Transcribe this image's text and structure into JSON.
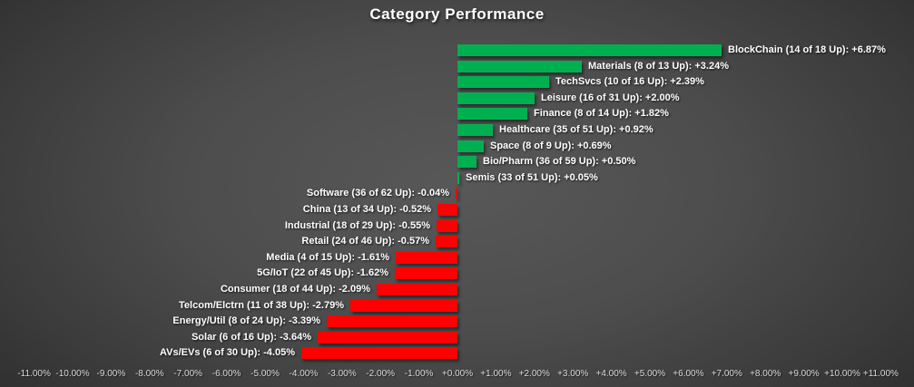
{
  "title": "Category Performance",
  "colors": {
    "positive_bar": "#00B050",
    "negative_bar": "#FF0000",
    "title_text": "#FFFFFF",
    "bar_label_text": "#FFFFFF",
    "axis_tick_text": "#D9D9D9",
    "background_center": "#585858",
    "background_edge": "#242424"
  },
  "chart_data": {
    "type": "bar",
    "orientation": "horizontal",
    "title": "Category Performance",
    "xlabel": "",
    "ylabel": "",
    "xlim": [
      -11,
      11
    ],
    "tick_step_pct": 1,
    "grid": false,
    "legend": "none",
    "value_unit": "%",
    "categories": [
      {
        "name": "BlockChain",
        "up": 14,
        "total": 18,
        "value": 6.87,
        "label": "BlockChain (14 of 18 Up): +6.87%"
      },
      {
        "name": "Materials",
        "up": 8,
        "total": 13,
        "value": 3.24,
        "label": "Materials (8 of 13 Up): +3.24%"
      },
      {
        "name": "TechSvcs",
        "up": 10,
        "total": 16,
        "value": 2.39,
        "label": "TechSvcs (10 of 16 Up): +2.39%"
      },
      {
        "name": "Leisure",
        "up": 16,
        "total": 31,
        "value": 2.0,
        "label": "Leisure (16 of 31 Up): +2.00%"
      },
      {
        "name": "Finance",
        "up": 8,
        "total": 14,
        "value": 1.82,
        "label": "Finance (8 of 14 Up): +1.82%"
      },
      {
        "name": "Healthcare",
        "up": 35,
        "total": 51,
        "value": 0.92,
        "label": "Healthcare (35 of 51 Up): +0.92%"
      },
      {
        "name": "Space",
        "up": 8,
        "total": 9,
        "value": 0.69,
        "label": "Space (8 of 9 Up): +0.69%"
      },
      {
        "name": "Bio/Pharm",
        "up": 36,
        "total": 59,
        "value": 0.5,
        "label": "Bio/Pharm (36 of 59 Up): +0.50%"
      },
      {
        "name": "Semis",
        "up": 33,
        "total": 51,
        "value": 0.05,
        "label": "Semis (33 of 51 Up): +0.05%"
      },
      {
        "name": "Software",
        "up": 36,
        "total": 62,
        "value": -0.04,
        "label": "Software (36 of 62 Up): -0.04%"
      },
      {
        "name": "China",
        "up": 13,
        "total": 34,
        "value": -0.52,
        "label": "China (13 of 34 Up): -0.52%"
      },
      {
        "name": "Industrial",
        "up": 18,
        "total": 29,
        "value": -0.55,
        "label": "Industrial (18 of 29 Up): -0.55%"
      },
      {
        "name": "Retail",
        "up": 24,
        "total": 46,
        "value": -0.57,
        "label": "Retail (24 of 46 Up): -0.57%"
      },
      {
        "name": "Media",
        "up": 4,
        "total": 15,
        "value": -1.61,
        "label": "Media (4 of 15 Up): -1.61%"
      },
      {
        "name": "5G/IoT",
        "up": 22,
        "total": 45,
        "value": -1.62,
        "label": "5G/IoT (22 of 45 Up): -1.62%"
      },
      {
        "name": "Consumer",
        "up": 18,
        "total": 44,
        "value": -2.09,
        "label": "Consumer (18 of 44 Up): -2.09%"
      },
      {
        "name": "Telcom/Elctrn",
        "up": 11,
        "total": 38,
        "value": -2.79,
        "label": "Telcom/Elctrn (11 of 38 Up): -2.79%"
      },
      {
        "name": "Energy/Util",
        "up": 8,
        "total": 24,
        "value": -3.39,
        "label": "Energy/Util (8 of 24 Up): -3.39%"
      },
      {
        "name": "Solar",
        "up": 6,
        "total": 16,
        "value": -3.64,
        "label": "Solar (6 of 16 Up): -3.64%"
      },
      {
        "name": "AVs/EVs",
        "up": 6,
        "total": 30,
        "value": -4.05,
        "label": "AVs/EVs (6 of 30 Up): -4.05%"
      }
    ],
    "x_tick_labels": [
      "-11.00%",
      "-10.00%",
      "-9.00%",
      "-8.00%",
      "-7.00%",
      "-6.00%",
      "-5.00%",
      "-4.00%",
      "-3.00%",
      "-2.00%",
      "-1.00%",
      "+0.00%",
      "+1.00%",
      "+2.00%",
      "+3.00%",
      "+4.00%",
      "+5.00%",
      "+6.00%",
      "+7.00%",
      "+8.00%",
      "+9.00%",
      "+10.00%",
      "+11.00%"
    ]
  }
}
